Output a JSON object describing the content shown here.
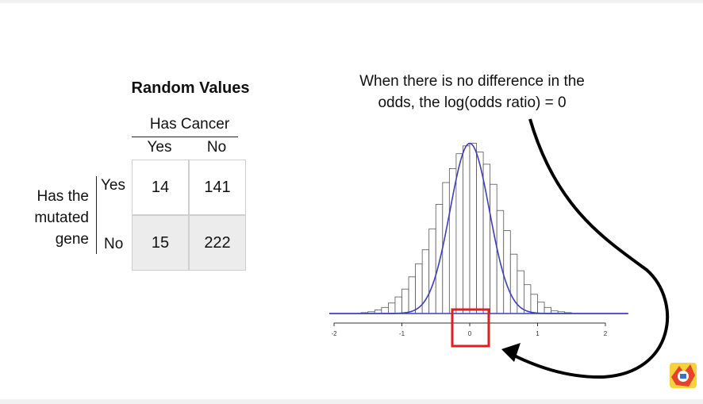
{
  "table": {
    "title": "Random Values",
    "col_header": "Has Cancer",
    "col_labels": [
      "Yes",
      "No"
    ],
    "row_header": [
      "Has the",
      "mutated",
      "gene"
    ],
    "row_labels": [
      "Yes",
      "No"
    ],
    "cells": [
      [
        "14",
        "141"
      ],
      [
        "15",
        "222"
      ]
    ]
  },
  "annotation": {
    "line1": "When there is no difference in the",
    "line2": "odds, the log(odds ratio) = 0"
  },
  "chart_data": {
    "type": "bar",
    "title": "",
    "xlabel": "",
    "ylabel": "",
    "x_ticks": [
      "-2",
      "-1",
      "0",
      "1",
      "2"
    ],
    "xlim": [
      -2.0,
      2.0
    ],
    "bin_width": 0.1,
    "bin_starts": [
      -2.0,
      -1.9,
      -1.8,
      -1.7,
      -1.6,
      -1.5,
      -1.4,
      -1.3,
      -1.2,
      -1.1,
      -1.0,
      -0.9,
      -0.8,
      -0.7,
      -0.6,
      -0.5,
      -0.4,
      -0.3,
      -0.2,
      -0.1,
      0.0,
      0.1,
      0.2,
      0.3,
      0.4,
      0.5,
      0.6,
      0.7,
      0.8,
      0.9,
      1.0,
      1.1,
      1.2,
      1.3,
      1.4,
      1.5,
      1.6,
      1.7,
      1.8,
      1.9
    ],
    "values": [
      0,
      0,
      0,
      0,
      1,
      2,
      4,
      7,
      12,
      19,
      28,
      42,
      57,
      73,
      97,
      125,
      150,
      166,
      183,
      192,
      195,
      185,
      171,
      148,
      118,
      95,
      68,
      49,
      33,
      22,
      13,
      7,
      3,
      2,
      1,
      0,
      0,
      0,
      0,
      0
    ],
    "y_scale_max": 200,
    "curve": {
      "type": "normal",
      "mean": 0.0,
      "sd": 0.29,
      "peak": 195
    },
    "highlight": {
      "x_center": 0.0,
      "color": "#e02020"
    },
    "colors": {
      "bars": "#ffffff",
      "bar_edge": "#555555",
      "curve": "#3d3dc4",
      "axis": "#333333",
      "arrow": "#000000"
    }
  },
  "logo": {
    "name": "statquest-logo-icon"
  }
}
